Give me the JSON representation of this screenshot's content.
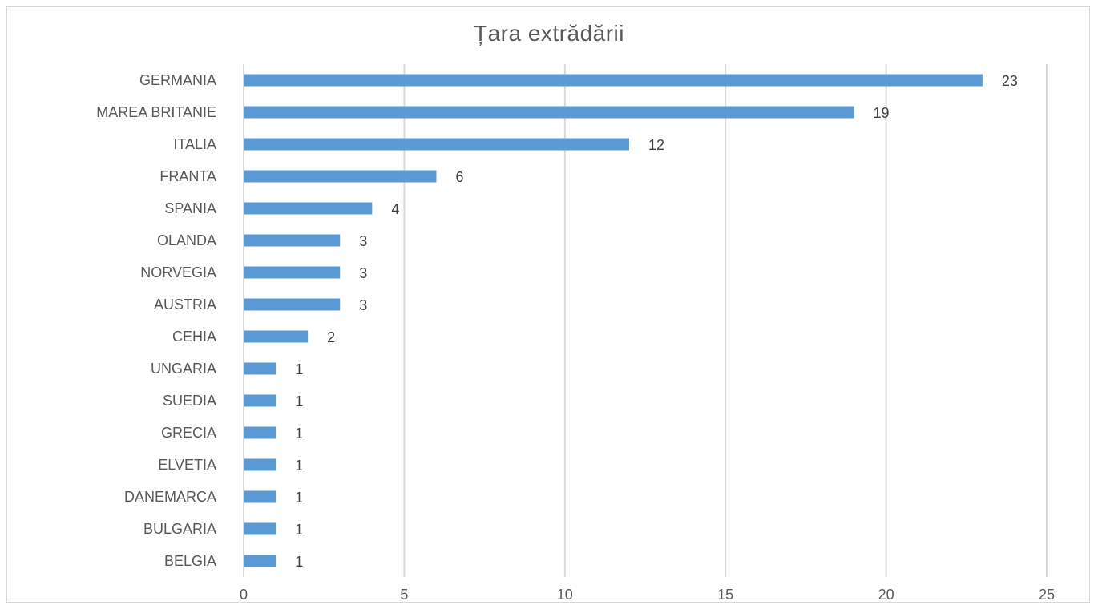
{
  "chart_data": {
    "type": "bar",
    "orientation": "horizontal",
    "title": "Țara extrădării",
    "categories": [
      "GERMANIA",
      "MAREA BRITANIE",
      "ITALIA",
      "FRANTA",
      "SPANIA",
      "OLANDA",
      "NORVEGIA",
      "AUSTRIA",
      "CEHIA",
      "UNGARIA",
      "SUEDIA",
      "GRECIA",
      "ELVETIA",
      "DANEMARCA",
      "BULGARIA",
      "BELGIA"
    ],
    "values": [
      23,
      19,
      12,
      6,
      4,
      3,
      3,
      3,
      2,
      1,
      1,
      1,
      1,
      1,
      1,
      1
    ],
    "xlim": [
      0,
      25
    ],
    "xticks": [
      "0",
      "5",
      "10",
      "15",
      "20",
      "25"
    ],
    "grid": true,
    "data_labels": true,
    "bar_color": "#5b9bd5",
    "grid_color": "#d9d9d9"
  }
}
